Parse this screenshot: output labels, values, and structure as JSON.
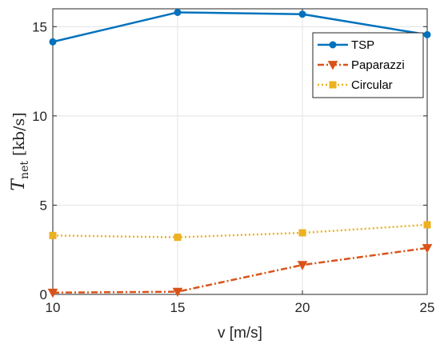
{
  "chart_data": {
    "type": "line",
    "x": [
      10,
      15,
      20,
      25
    ],
    "xlim": [
      10,
      25
    ],
    "ylim": [
      0,
      16
    ],
    "xticks": [
      "10",
      "15",
      "20",
      "25"
    ],
    "yticks": [
      "0",
      "5",
      "10",
      "15"
    ],
    "xlabel": "v [m/s]",
    "ylabel_main": "T",
    "ylabel_sub": "net",
    "ylabel_unit": "[kb/s]",
    "grid": true,
    "legend_position": "top-right",
    "series": [
      {
        "name": "TSP",
        "values": [
          14.15,
          15.8,
          15.7,
          14.55
        ],
        "color": "#0072BD",
        "marker": "circle",
        "dash": "solid"
      },
      {
        "name": "Paparazzi",
        "values": [
          0.1,
          0.15,
          1.65,
          2.6
        ],
        "color": "#D95319",
        "marker": "triangle-down",
        "dash": "dashdot"
      },
      {
        "name": "Circular",
        "values": [
          3.3,
          3.2,
          3.45,
          3.9
        ],
        "color": "#EDB120",
        "marker": "square",
        "dash": "dotted"
      }
    ]
  }
}
